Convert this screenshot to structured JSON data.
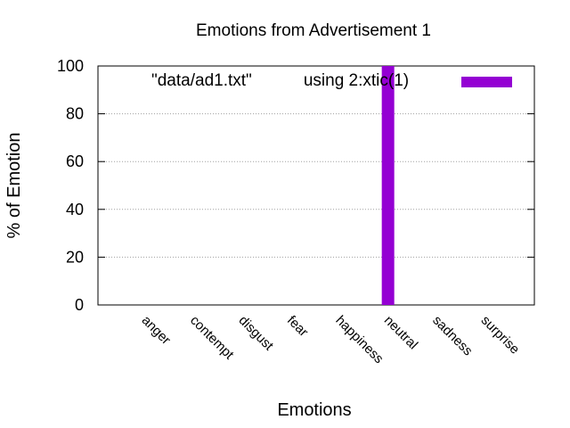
{
  "chart_data": {
    "type": "bar",
    "title": "Emotions from Advertisement 1",
    "xlabel": "Emotions",
    "ylabel": "% of Emotion",
    "categories": [
      "anger",
      "contempt",
      "disgust",
      "fear",
      "happiness",
      "neutral",
      "sadness",
      "surprise"
    ],
    "series": [
      {
        "name": "\"data/ad1.txt\"           using 2:xtic(1)",
        "values": [
          0,
          0,
          0,
          0,
          0,
          100,
          0,
          0
        ],
        "color": "#9400d3"
      }
    ],
    "ylim": [
      0,
      100
    ],
    "yticks": [
      "0",
      "20",
      "40",
      "60",
      "80",
      "100"
    ],
    "grid": true,
    "legend_position": "top-right"
  }
}
